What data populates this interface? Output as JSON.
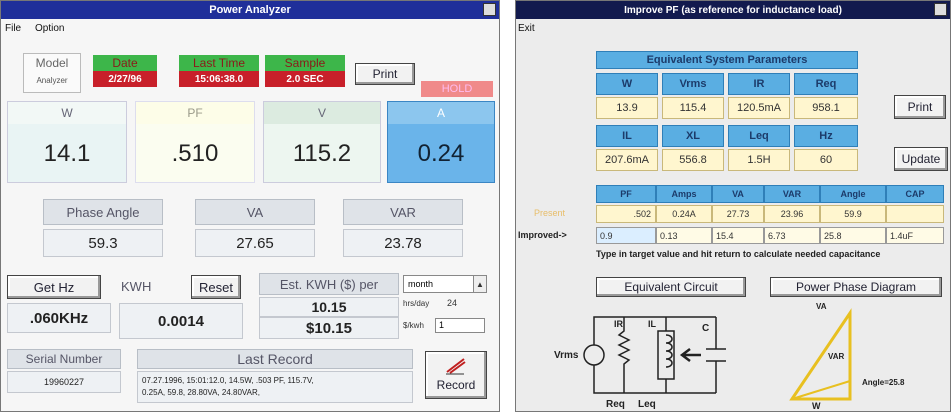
{
  "left_window": {
    "title": "Power Analyzer",
    "menu": [
      "File",
      "Option"
    ],
    "model": {
      "label": "Model",
      "value": "Analyzer"
    },
    "date": {
      "label": "Date",
      "value": "2/27/96"
    },
    "last_time": {
      "label": "Last Time",
      "value": "15:06:38.0"
    },
    "sample": {
      "label": "Sample",
      "value": "2.0 SEC"
    },
    "print": "Print",
    "hold": "HOLD",
    "readings": [
      {
        "label": "W",
        "value": "14.1"
      },
      {
        "label": "PF",
        "value": ".510"
      },
      {
        "label": "V",
        "value": "115.2"
      },
      {
        "label": "A",
        "value": "0.24"
      }
    ],
    "derived": [
      {
        "label": "Phase Angle",
        "value": "59.3"
      },
      {
        "label": "VA",
        "value": "27.65"
      },
      {
        "label": "VAR",
        "value": "23.78"
      }
    ],
    "get_hz": "Get Hz",
    "hz_value": ".060KHz",
    "kwh": {
      "label": "KWH",
      "reset": "Reset",
      "value": "0.0014"
    },
    "estimate": {
      "label": "Est. KWH ($) per",
      "period": "month",
      "kwh": "10.15",
      "cost": "$10.15",
      "hrs_label": "hrs/day",
      "hrs": "24",
      "rate_label": "$/kwh",
      "rate": "1"
    },
    "serial": {
      "label": "Serial Number",
      "value": "19960227"
    },
    "last_record": {
      "label": "Last Record",
      "lines": [
        "07.27.1996, 15:01:12.0,   14.5W,   .503 PF,   115.7V,",
        "0.25A,   59.8,   28.80VA,   24.80VAR,"
      ]
    },
    "record": "Record"
  },
  "right_window": {
    "title": "Improve PF (as reference for inductance load)",
    "menu": [
      "Exit"
    ],
    "params_title": "Equivalent System Parameters",
    "params_row1": {
      "headers": [
        "W",
        "Vrms",
        "IR",
        "Req"
      ],
      "values": [
        "13.9",
        "115.4",
        "120.5mA",
        "958.1"
      ]
    },
    "params_row2": {
      "headers": [
        "IL",
        "XL",
        "Leq",
        "Hz"
      ],
      "values": [
        "207.6mA",
        "556.8",
        "1.5H",
        "60"
      ]
    },
    "print": "Print",
    "update": "Update",
    "table": {
      "headers": [
        "PF",
        "Amps",
        "VA",
        "VAR",
        "Angle",
        "CAP"
      ],
      "present": {
        "label": "Present",
        "values": [
          ".502",
          "0.24A",
          "27.73",
          "23.96",
          "59.9"
        ]
      },
      "improved": {
        "label": "Improved->",
        "values": [
          "0.9",
          "0.13",
          "15.4",
          "6.73",
          "25.8",
          "1.4uF"
        ]
      }
    },
    "note": "Type in target value and hit return to calculate needed capacitance",
    "equivalent_circuit": "Equivalent Circuit",
    "power_phase_diagram": "Power Phase Diagram",
    "circuit": {
      "source": "Vrms",
      "ir": "IR",
      "il": "IL",
      "c": "C",
      "req": "Req",
      "leq": "Leq"
    },
    "phase": {
      "va": "VA",
      "var": "VAR",
      "w": "W",
      "angle": "Angle=25.8"
    }
  }
}
